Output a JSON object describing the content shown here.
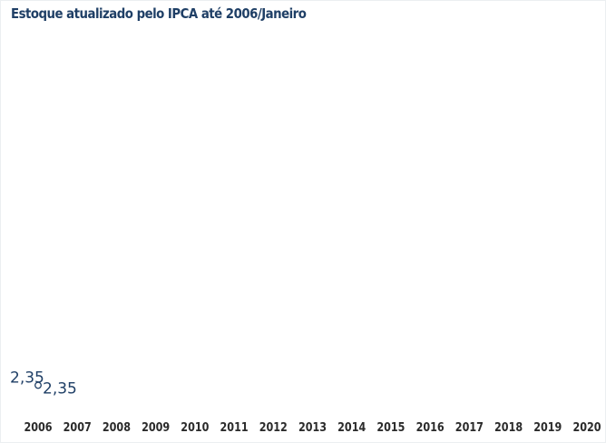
{
  "chart_data": {
    "type": "line",
    "title": "Estoque atualizado pelo IPCA até 2006/Janeiro",
    "xlabel": "",
    "ylabel": "",
    "categories": [
      "2006",
      "2007",
      "2008",
      "2009",
      "2010",
      "2011",
      "2012",
      "2013",
      "2014",
      "2015",
      "2016",
      "2017",
      "2018",
      "2019",
      "2020"
    ],
    "series": [
      {
        "values": [
          2.35,
          null,
          null,
          null,
          null,
          null,
          null,
          null,
          null,
          null,
          null,
          null,
          null,
          null,
          null
        ]
      }
    ],
    "data_labels": [
      "2,35",
      "2,35"
    ],
    "colors": {
      "series": "#1f3f66",
      "title": "#1f3f66",
      "axis_labels": "#2b2b2b"
    },
    "grid": false,
    "legend": "none"
  }
}
